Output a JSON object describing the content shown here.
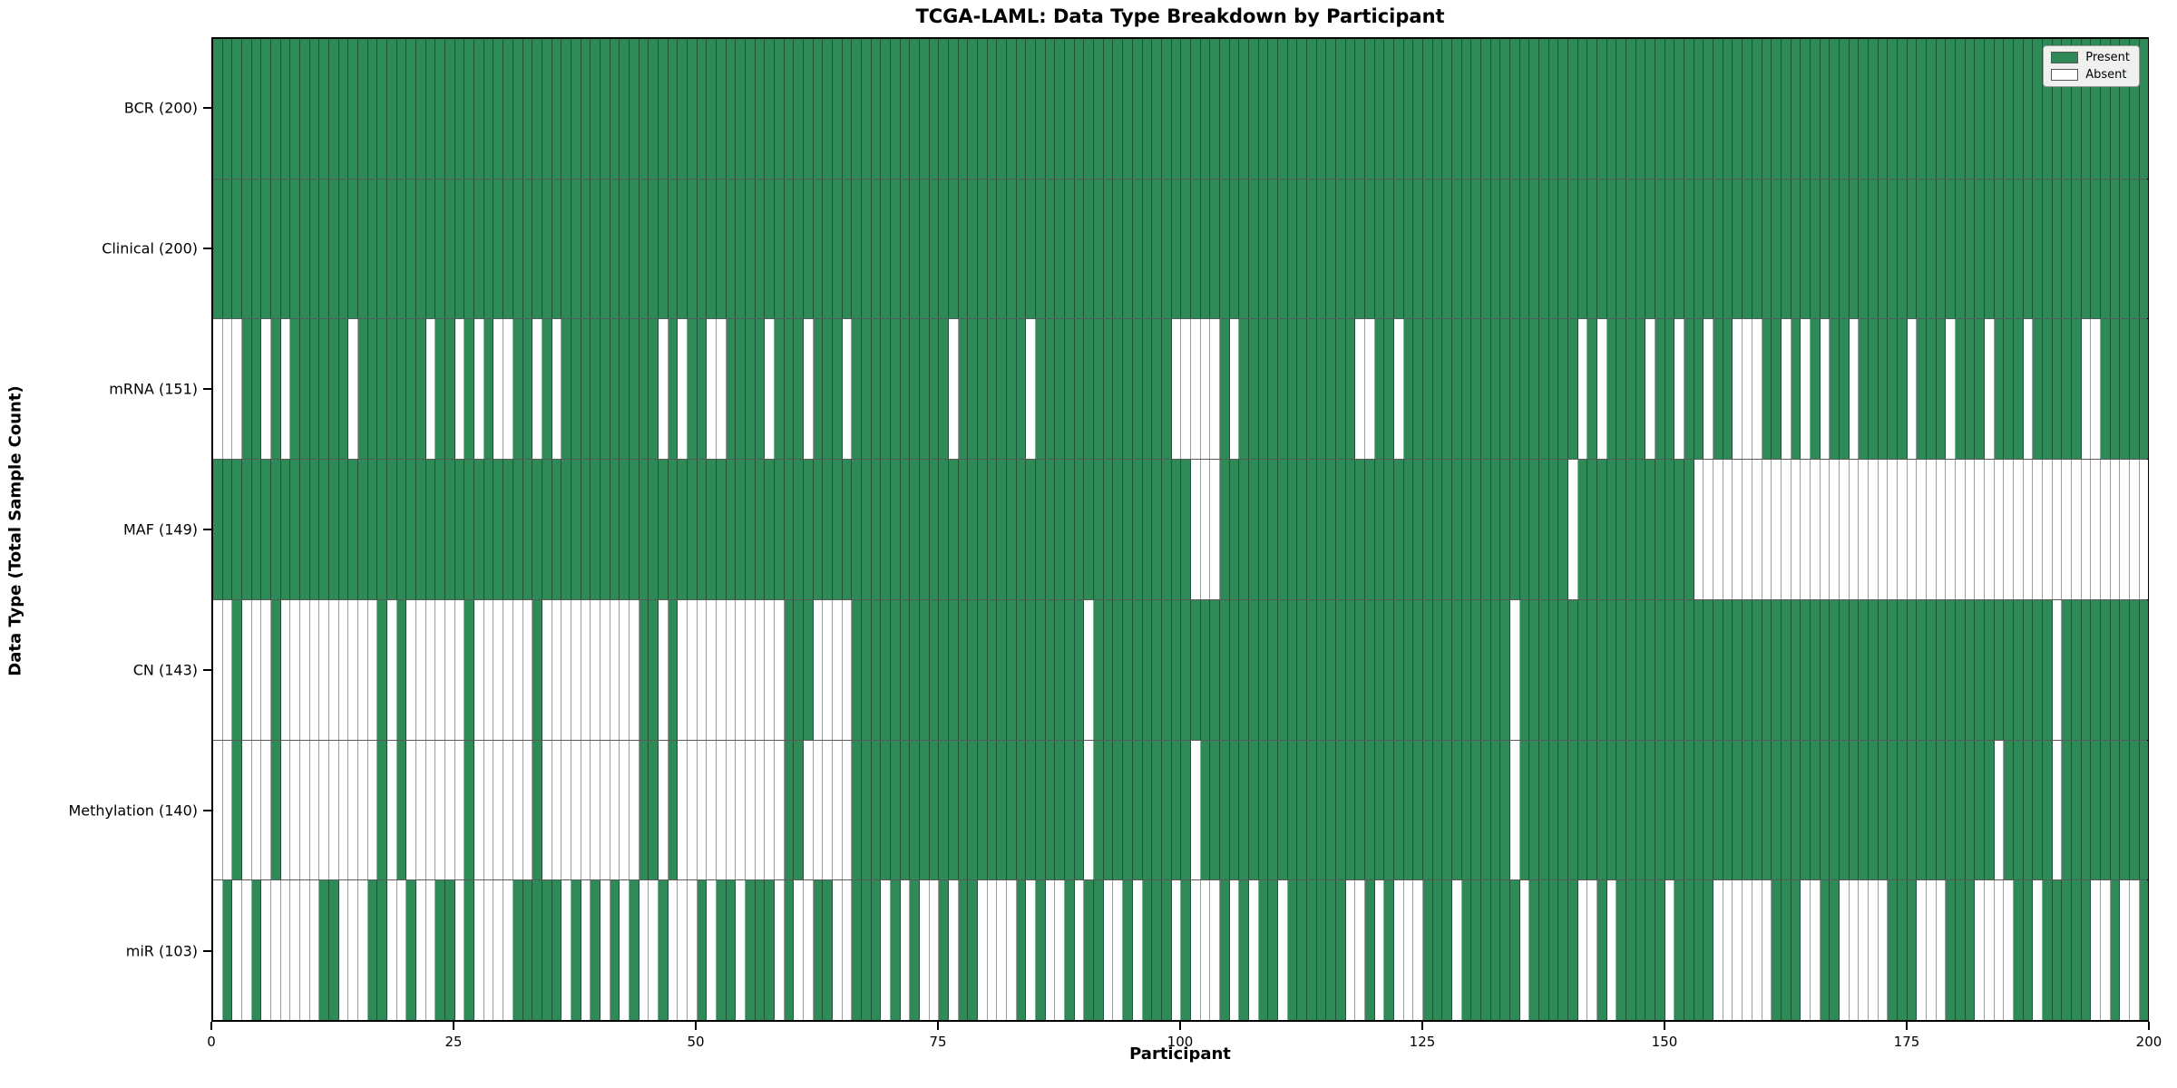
{
  "title": "TCGA-LAML: Data Type Breakdown by Participant",
  "xlabel": "Participant",
  "ylabel": "Data Type (Total Sample Count)",
  "legend": {
    "present_label": "Present",
    "absent_label": "Absent"
  },
  "colors": {
    "present": "#2e8b57",
    "absent": "#ffffff",
    "cell_edge": "rgba(0,0,0,0.38)",
    "row_edge": "rgba(0,0,0,0.65)",
    "spine": "#000000",
    "legend_bg": "#eef1ee"
  },
  "chart_data": {
    "type": "heatmap",
    "title": "TCGA-LAML: Data Type Breakdown by Participant",
    "xlabel": "Participant",
    "ylabel": "Data Type (Total Sample Count)",
    "x_range": [
      0,
      200
    ],
    "x_ticks": [
      0,
      25,
      50,
      75,
      100,
      125,
      150,
      175,
      200
    ],
    "n_participants": 200,
    "legend_position": "upper right",
    "value_legend": {
      "1": "Present",
      "0": "Absent"
    },
    "rows": [
      {
        "label": "BCR (200)",
        "name": "BCR",
        "present_count": 200,
        "absent_indices": []
      },
      {
        "label": "Clinical (200)",
        "name": "Clinical",
        "present_count": 200,
        "absent_indices": []
      },
      {
        "label": "mRNA (151)",
        "name": "mRNA",
        "present_count": 151,
        "absent_indices": [
          0,
          1,
          2,
          5,
          7,
          14,
          22,
          25,
          27,
          29,
          30,
          33,
          35,
          46,
          48,
          51,
          52,
          57,
          61,
          65,
          76,
          84,
          99,
          100,
          101,
          102,
          103,
          105,
          118,
          119,
          122,
          141,
          143,
          148,
          151,
          154,
          157,
          158,
          159,
          162,
          164,
          166,
          169,
          175,
          179,
          183,
          187,
          193,
          194
        ]
      },
      {
        "label": "MAF (149)",
        "name": "MAF",
        "present_count": 149,
        "absent_indices": [
          101,
          102,
          103,
          140,
          153,
          154,
          155,
          156,
          157,
          158,
          159,
          160,
          161,
          162,
          163,
          164,
          165,
          166,
          167,
          168,
          169,
          170,
          171,
          172,
          173,
          174,
          175,
          176,
          177,
          178,
          179,
          180,
          181,
          182,
          183,
          184,
          185,
          186,
          187,
          188,
          189,
          190,
          191,
          192,
          193,
          194,
          195,
          196,
          197,
          198,
          199
        ]
      },
      {
        "label": "CN (143)",
        "name": "CN",
        "present_count": 143,
        "absent_indices": [
          0,
          1,
          3,
          4,
          5,
          7,
          8,
          9,
          10,
          11,
          12,
          13,
          14,
          15,
          16,
          18,
          20,
          21,
          22,
          23,
          24,
          25,
          27,
          28,
          29,
          30,
          31,
          32,
          34,
          35,
          36,
          37,
          38,
          39,
          40,
          41,
          42,
          43,
          46,
          48,
          49,
          50,
          51,
          52,
          53,
          54,
          55,
          56,
          57,
          58,
          62,
          63,
          64,
          65,
          90,
          134,
          190
        ]
      },
      {
        "label": "Methylation (140)",
        "name": "Methylation",
        "present_count": 140,
        "absent_indices": [
          0,
          1,
          3,
          4,
          5,
          7,
          8,
          9,
          10,
          11,
          12,
          13,
          14,
          15,
          16,
          18,
          20,
          21,
          22,
          23,
          24,
          25,
          27,
          28,
          29,
          30,
          31,
          32,
          34,
          35,
          36,
          37,
          38,
          39,
          40,
          41,
          42,
          43,
          46,
          48,
          49,
          50,
          51,
          52,
          53,
          54,
          55,
          56,
          57,
          58,
          61,
          62,
          63,
          64,
          65,
          90,
          101,
          134,
          184,
          190
        ]
      },
      {
        "label": "miR (103)",
        "name": "miR",
        "present_count": 103,
        "absent_indices": [
          0,
          2,
          3,
          5,
          6,
          7,
          8,
          9,
          10,
          13,
          14,
          15,
          18,
          19,
          21,
          22,
          25,
          27,
          28,
          29,
          30,
          36,
          38,
          40,
          42,
          44,
          45,
          47,
          48,
          49,
          51,
          54,
          58,
          60,
          61,
          64,
          65,
          69,
          71,
          73,
          74,
          76,
          79,
          80,
          81,
          82,
          84,
          86,
          87,
          89,
          92,
          93,
          95,
          99,
          101,
          102,
          103,
          105,
          107,
          110,
          117,
          118,
          120,
          122,
          123,
          124,
          128,
          135,
          141,
          142,
          144,
          150,
          155,
          156,
          157,
          158,
          159,
          160,
          164,
          165,
          168,
          169,
          170,
          171,
          172,
          176,
          177,
          178,
          182,
          183,
          184,
          185,
          188,
          194,
          195,
          197,
          198
        ]
      }
    ]
  }
}
